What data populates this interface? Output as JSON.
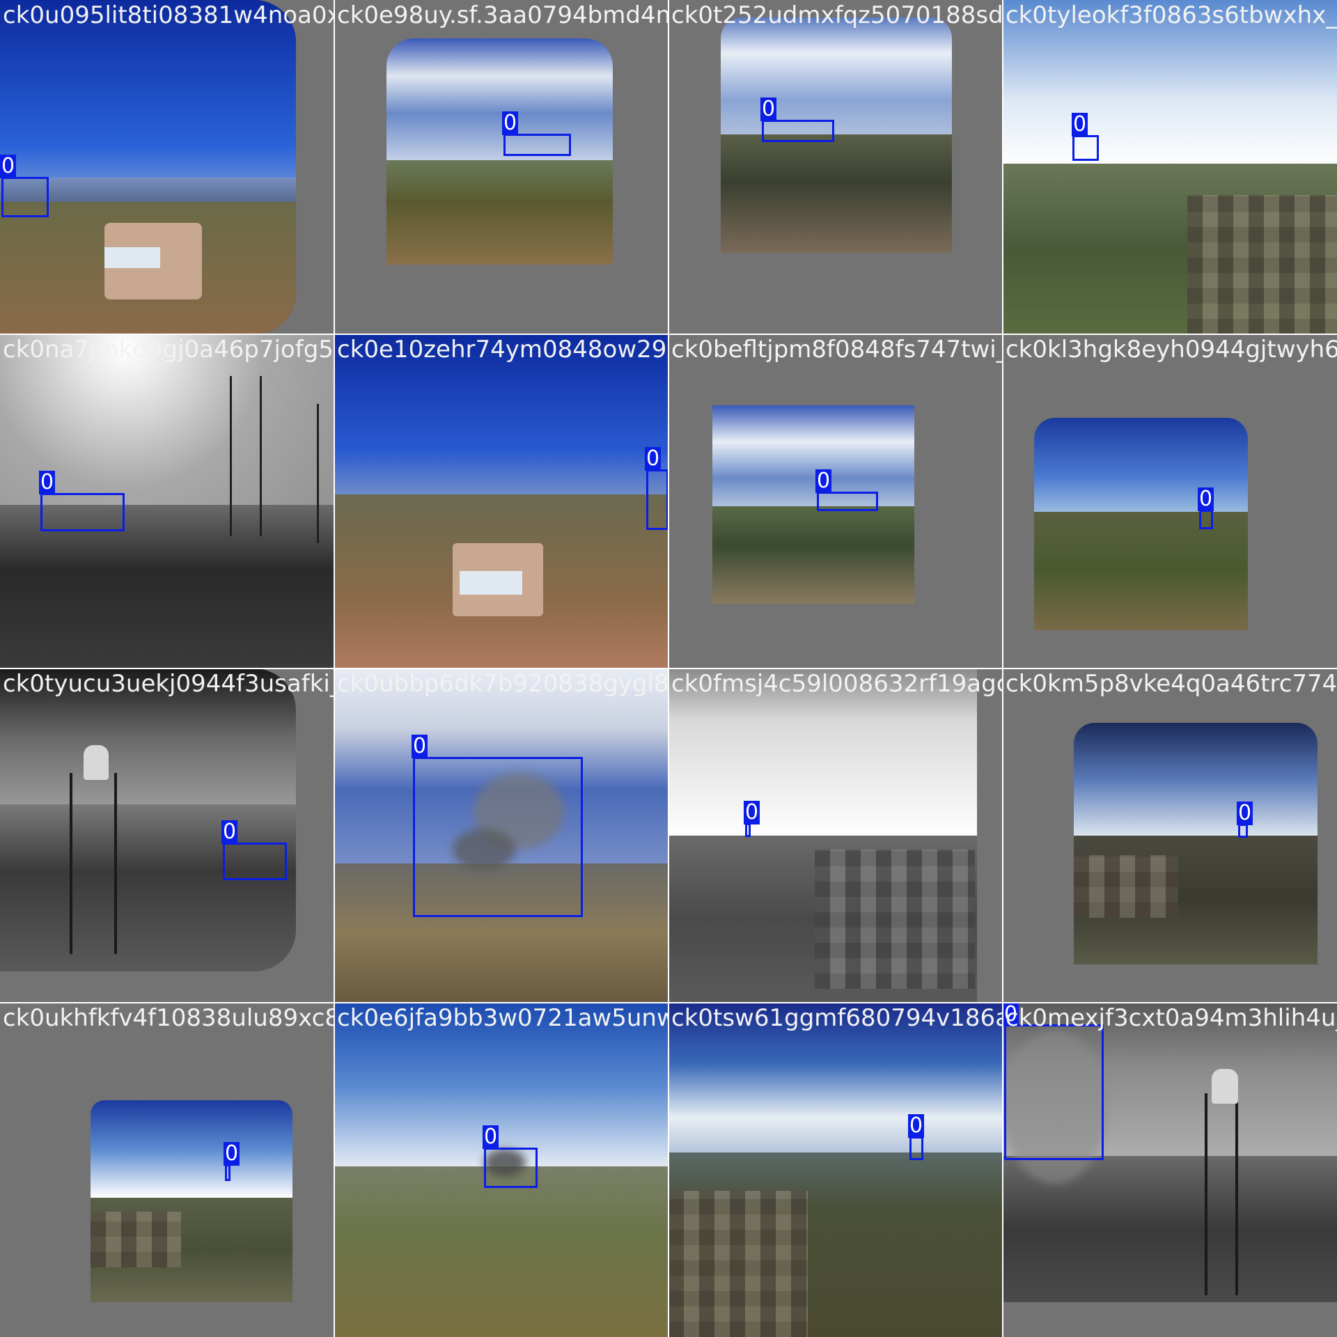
{
  "tiles": [
    {
      "filename": "ck0u095lit8ti08381w4noa0x_jpeg.jpg",
      "label": "0"
    },
    {
      "filename": "ck0e98uy.sf.3aa0794bmd4n7d_jpeg.jpg",
      "label": "0"
    },
    {
      "filename": "ck0t252udmxfqz5070188sd9z_jpeg.jpg",
      "label": "0"
    },
    {
      "filename": "ck0tyleokf3f0863s6tbwxhx_jpeg.jpg",
      "label": "0"
    },
    {
      "filename": "ck0na7jmkg9gj0a46p7jofg58_jpeg.jpg",
      "label": "0"
    },
    {
      "filename": "ck0e10zehr74ym0848ow29lcc_jpeg.jpg",
      "label": "0"
    },
    {
      "filename": "ck0befltjpm8f0848fs747twi_jpeg.jpg",
      "label": "0"
    },
    {
      "filename": "ck0kl3hgk8eyh0944gjtwyh6h_jpeg.jpg",
      "label": "0"
    },
    {
      "filename": "ck0tyucu3uekj0944f3usafki_jpeg.jpg",
      "label": "0"
    },
    {
      "filename": "ck0ubbp6dk7b920838gygl8n4_jpeg.jpg",
      "label": "0"
    },
    {
      "filename": "ck0fmsj4c59l008632rf19agc_jpeg.jpg",
      "label": "0"
    },
    {
      "filename": "ck0km5p8vke4q0a46trc774ll_jpeg.jpg",
      "label": "0"
    },
    {
      "filename": "ck0ukhfkfv4f10838ulu89xc8_jpeg.jpg",
      "label": "0"
    },
    {
      "filename": "ck0e6jfa9bb3w0721aw5unwd_jpeg.jpg",
      "label": "0"
    },
    {
      "filename": "ck0tsw61ggmf680794v186ap_jpeg.jpg",
      "label": "0"
    },
    {
      "filename": "ck0mexjf3cxt0a94m3hlih4u_jpeg.jpg",
      "label": "0"
    }
  ]
}
